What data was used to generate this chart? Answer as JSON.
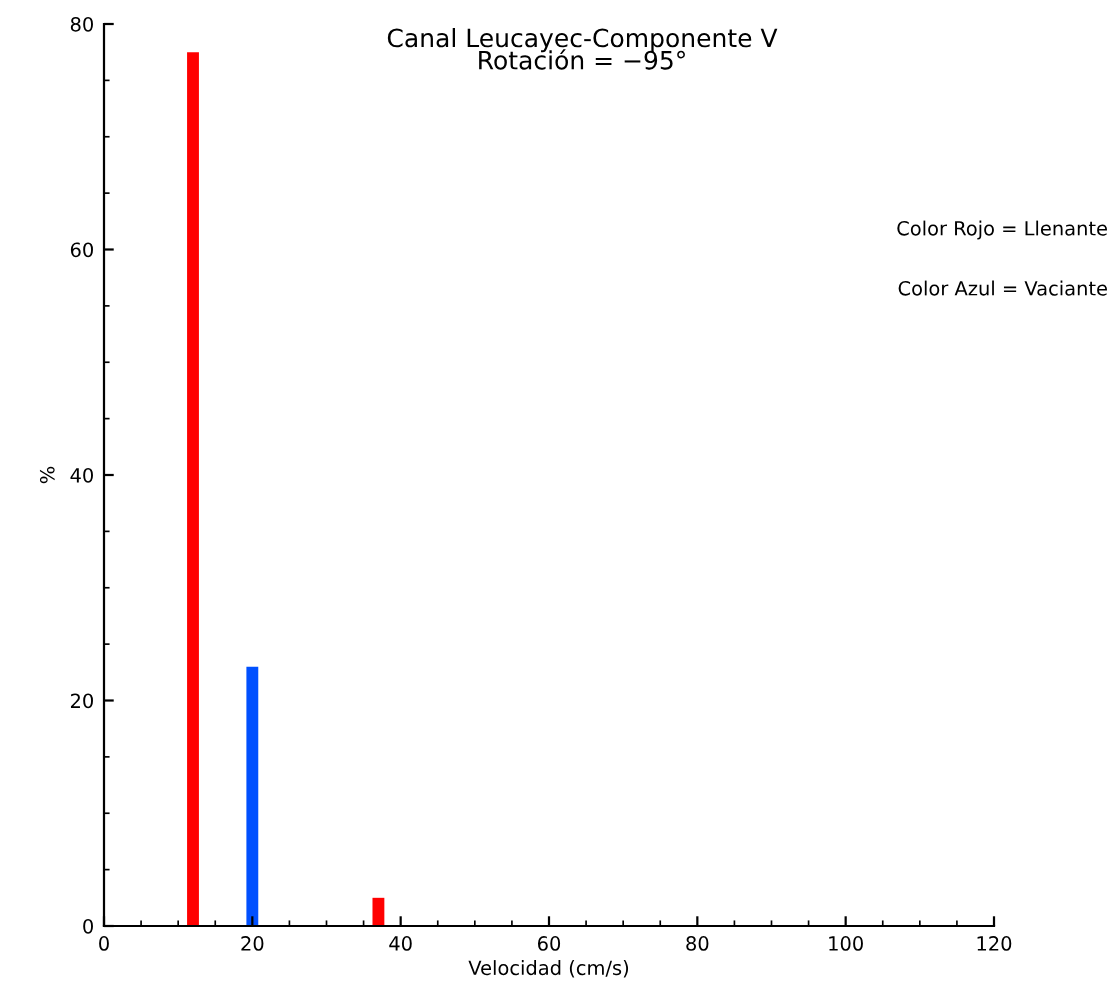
{
  "chart_data": {
    "type": "bar",
    "title": "Canal Leucayec-Componente V\nRotación = −95°",
    "xlabel": "Velocidad (cm/s)",
    "ylabel": "%",
    "series": [
      {
        "color": "#ff0000",
        "x": [
          12,
          37
        ],
        "values": [
          77.5,
          2.5
        ]
      },
      {
        "color": "#0050ff",
        "x": [
          20
        ],
        "values": [
          23
        ]
      }
    ],
    "xlim": [
      0,
      120
    ],
    "xticks": [
      0,
      20,
      40,
      60,
      80,
      100,
      120
    ],
    "ylim": [
      0,
      80
    ],
    "yticks": [
      0,
      20,
      40,
      60,
      80
    ],
    "annotations": [
      "Color Rojo = Llenante",
      "Color Azul = Vaciante"
    ],
    "grid": false,
    "legend": false
  }
}
